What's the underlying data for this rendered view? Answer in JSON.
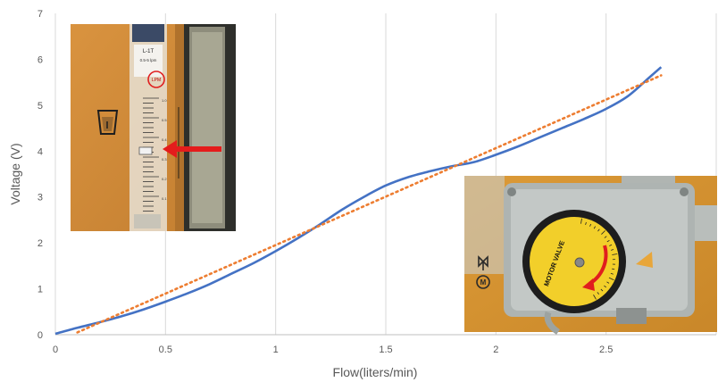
{
  "chart_data": {
    "type": "line",
    "xlabel": "Flow(liters/min)",
    "ylabel": "Voltage (V)",
    "xlim": [
      0,
      3
    ],
    "ylim": [
      0,
      7
    ],
    "x_ticks": [
      "0",
      "0.5",
      "1",
      "1.5",
      "2",
      "2.5"
    ],
    "y_ticks": [
      "0",
      "1",
      "2",
      "3",
      "4",
      "5",
      "6",
      "7"
    ],
    "grid": "vertical",
    "series": [
      {
        "name": "",
        "style": "solid",
        "color": "#4472c4",
        "x": [
          0,
          0.1,
          0.2,
          0.3,
          0.4,
          0.5,
          0.6,
          0.7,
          0.8,
          0.9,
          1.0,
          1.1,
          1.2,
          1.3,
          1.4,
          1.5,
          1.6,
          1.7,
          1.8,
          1.9,
          2.0,
          2.1,
          2.2,
          2.3,
          2.4,
          2.5,
          2.6,
          2.7,
          2.75
        ],
        "y": [
          0.02,
          0.15,
          0.27,
          0.4,
          0.55,
          0.72,
          0.9,
          1.1,
          1.33,
          1.56,
          1.82,
          2.1,
          2.4,
          2.72,
          3.0,
          3.25,
          3.43,
          3.56,
          3.67,
          3.76,
          3.92,
          4.1,
          4.3,
          4.5,
          4.7,
          4.92,
          5.2,
          5.62,
          5.83
        ]
      },
      {
        "name": "",
        "style": "dotted",
        "color": "#ed7d31",
        "x": [
          0.1,
          2.75
        ],
        "y": [
          0.05,
          5.65
        ]
      }
    ]
  },
  "insets": {
    "flowmeter": {
      "label_top": "L-1T",
      "label_mid": "0.5-5 lpm",
      "unit": "LPM",
      "scale_labels": [
        "1.0",
        "0.5",
        "0.4",
        "0.3",
        "0.2",
        "0.1"
      ]
    },
    "motor_valve": {
      "dial_text": "MOTOR VALVE",
      "side_letter": "M"
    }
  }
}
